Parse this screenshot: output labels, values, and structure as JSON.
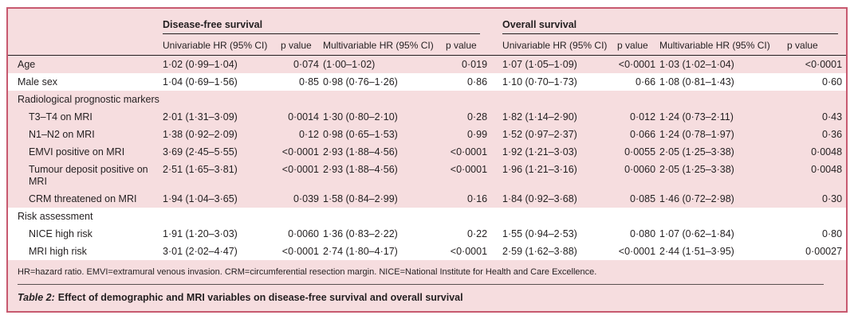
{
  "table": {
    "caption_label": "Table 2:",
    "caption_text": "Effect of demographic and MRI variables on disease-free survival and overall survival",
    "footnote": "HR=hazard ratio. EMVI=extramural venous invasion. CRM=circumferential resection margin. NICE=National Institute for Health and Care Excellence.",
    "groups": {
      "dfs": "Disease-free survival",
      "os": "Overall survival"
    },
    "columns": [
      "Univariable HR (95% CI)",
      "p value",
      "Multivariable HR (95% CI)",
      "p value",
      "Univariable HR (95% CI)",
      "p value",
      "Multivariable HR (95% CI)",
      "p value"
    ],
    "rows": [
      {
        "label": "Age",
        "type": "data",
        "indent": 0,
        "band": "pink",
        "values": [
          "1·02 (0·99–1·04)",
          "0·074",
          "(1·00–1·02)",
          "0·019",
          "1·07 (1·05–1·09)",
          "<0·0001",
          "1·03 (1·02–1·04)",
          "<0·0001"
        ]
      },
      {
        "label": "Male sex",
        "type": "data",
        "indent": 0,
        "band": "white",
        "values": [
          "1·04 (0·69–1·56)",
          "0·85",
          "0·98 (0·76–1·26)",
          "0·86",
          "1·10 (0·70–1·73)",
          "0·66",
          "1·08 (0·81–1·43)",
          "0·60"
        ]
      },
      {
        "label": "Radiological prognostic markers",
        "type": "section",
        "indent": 0,
        "band": "pink",
        "values": []
      },
      {
        "label": "T3–T4 on MRI",
        "type": "data",
        "indent": 1,
        "band": "pink",
        "values": [
          "2·01 (1·31–3·09)",
          "0·0014",
          "1·30 (0·80–2·10)",
          "0·28",
          "1·82 (1·14–2·90)",
          "0·012",
          "1·24 (0·73–2·11)",
          "0·43"
        ]
      },
      {
        "label": "N1–N2 on MRI",
        "type": "data",
        "indent": 1,
        "band": "pink",
        "values": [
          "1·38 (0·92–2·09)",
          "0·12",
          "0·98 (0·65–1·53)",
          "0·99",
          "1·52 (0·97–2·37)",
          "0·066",
          "1·24 (0·78–1·97)",
          "0·36"
        ]
      },
      {
        "label": "EMVI positive on MRI",
        "type": "data",
        "indent": 1,
        "band": "pink",
        "values": [
          "3·69 (2·45–5·55)",
          "<0·0001",
          "2·93 (1·88–4·56)",
          "<0·0001",
          "1·92 (1·21–3·03)",
          "0·0055",
          "2·05 (1·25–3·38)",
          "0·0048"
        ]
      },
      {
        "label": "Tumour deposit positive on MRI",
        "type": "data",
        "indent": 1,
        "band": "pink",
        "values": [
          "2·51 (1·65–3·81)",
          "<0·0001",
          "2·93 (1·88–4·56)",
          "<0·0001",
          "1·96 (1·21–3·16)",
          "0·0060",
          "2·05 (1·25–3·38)",
          "0·0048"
        ]
      },
      {
        "label": "CRM threatened on MRI",
        "type": "data",
        "indent": 1,
        "band": "pink",
        "values": [
          "1·94 (1·04–3·65)",
          "0·039",
          "1·58 (0·84–2·99)",
          "0·16",
          "1·84 (0·92–3·68)",
          "0·085",
          "1·46 (0·72–2·98)",
          "0·30"
        ]
      },
      {
        "label": "Risk assessment",
        "type": "section",
        "indent": 0,
        "band": "white",
        "values": []
      },
      {
        "label": "NICE high risk",
        "type": "data",
        "indent": 1,
        "band": "white",
        "values": [
          "1·91 (1·20–3·03)",
          "0·0060",
          "1·36 (0·83–2·22)",
          "0·22",
          "1·55 (0·94–2·53)",
          "0·080",
          "1·07 (0·62–1·84)",
          "0·80"
        ]
      },
      {
        "label": "MRI high risk",
        "type": "data",
        "indent": 1,
        "band": "white",
        "values": [
          "3·01 (2·02–4·47)",
          "<0·0001",
          "2·74 (1·80–4·17)",
          "<0·0001",
          "2·59 (1·62–3·88)",
          "<0·0001",
          "2·44 (1·51–3·95)",
          "0·00027"
        ]
      }
    ],
    "colors": {
      "background_pink": "#f6dddf",
      "band_white": "#ffffff",
      "border_rose": "#c7596f",
      "rule_dark": "#231f20",
      "text": "#231f20"
    }
  }
}
